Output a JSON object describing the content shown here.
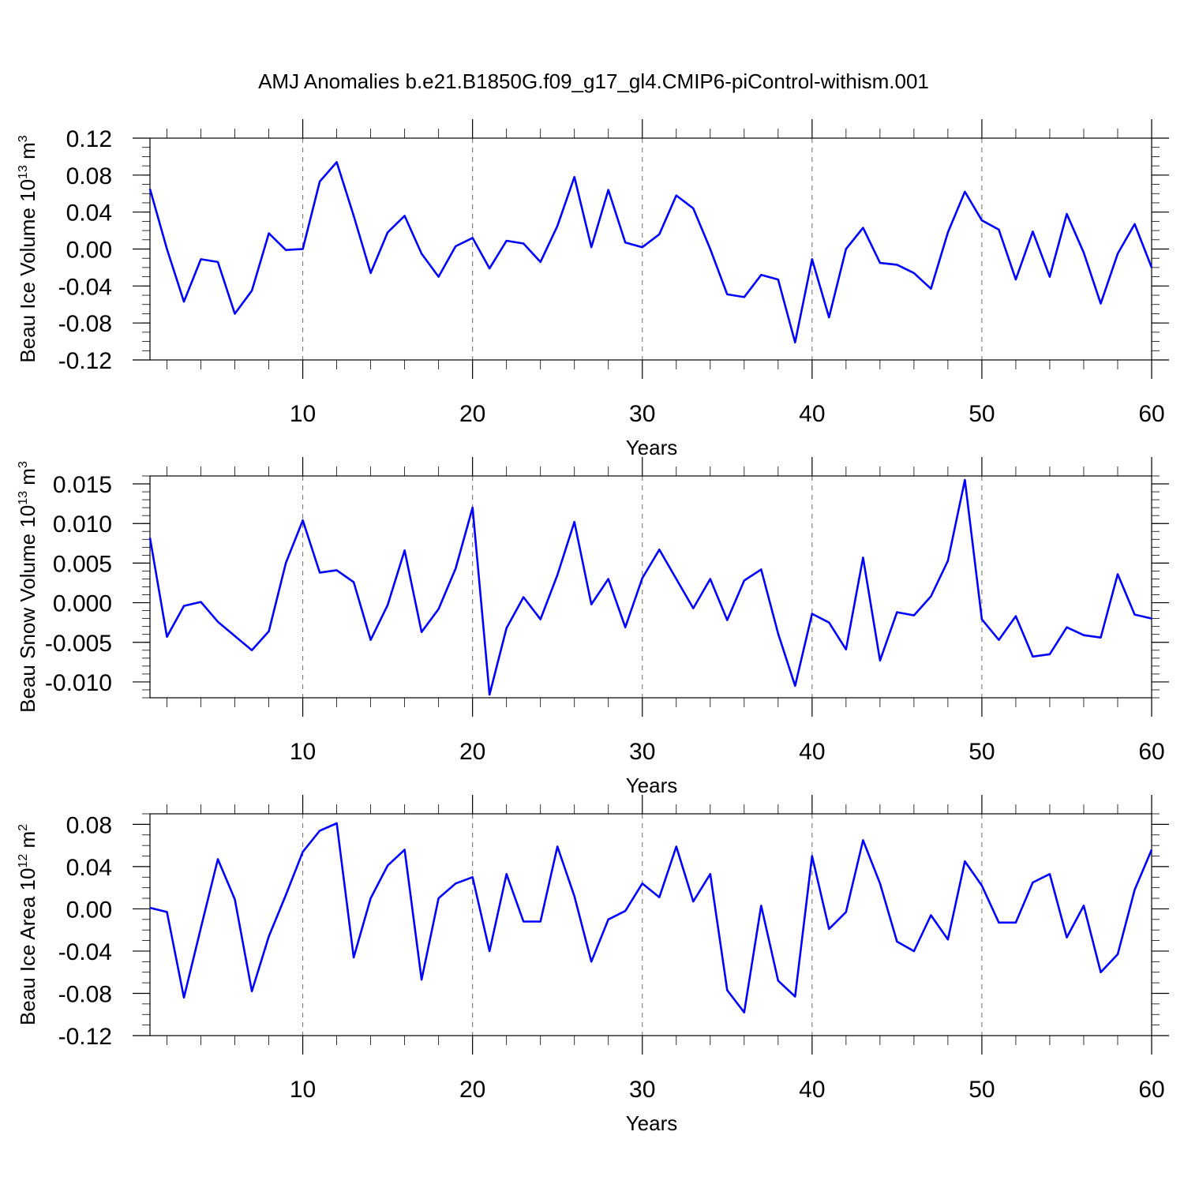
{
  "title": "AMJ Anomalies b.e21.B1850G.f09_g17_gl4.CMIP6-piControl-withism.001",
  "colors": {
    "line": "#0000ff"
  },
  "chart_data": [
    {
      "type": "line",
      "ylabel_main": "Beau Ice Volume 10",
      "ylabel_exp": "13",
      "ylabel_unit": " m",
      "ylabel_unit_exp": "3",
      "xlabel": "Years",
      "xlim": [
        1,
        60
      ],
      "ylim": [
        -0.12,
        0.12
      ],
      "yticks": [
        -0.12,
        -0.08,
        -0.04,
        0.0,
        0.04,
        0.08,
        0.12
      ],
      "ytick_labels": [
        "-0.12",
        "-0.08",
        "-0.04",
        "0.00",
        "0.04",
        "0.08",
        "0.12"
      ],
      "yminor_step": 0.01,
      "xticks": [
        10,
        20,
        30,
        40,
        50,
        60
      ],
      "xtick_labels": [
        "10",
        "20",
        "30",
        "40",
        "50",
        "60"
      ],
      "x": [
        1,
        2,
        3,
        4,
        5,
        6,
        7,
        8,
        9,
        10,
        11,
        12,
        13,
        14,
        15,
        16,
        17,
        18,
        19,
        20,
        21,
        22,
        23,
        24,
        25,
        26,
        27,
        28,
        29,
        30,
        31,
        32,
        33,
        34,
        35,
        36,
        37,
        38,
        39,
        40,
        41,
        42,
        43,
        44,
        45,
        46,
        47,
        48,
        49,
        50,
        51,
        52,
        53,
        54,
        55,
        56,
        57,
        58,
        59,
        60
      ],
      "values": [
        0.065,
        0.0,
        -0.057,
        -0.011,
        -0.014,
        -0.07,
        -0.045,
        0.017,
        -0.001,
        0.0,
        0.073,
        0.094,
        0.036,
        -0.026,
        0.018,
        0.036,
        -0.005,
        -0.03,
        0.003,
        0.012,
        -0.021,
        0.009,
        0.006,
        -0.014,
        0.025,
        0.078,
        0.002,
        0.064,
        0.007,
        0.002,
        0.016,
        0.058,
        0.044,
        0.0,
        -0.049,
        -0.052,
        -0.028,
        -0.033,
        -0.101,
        -0.011,
        -0.074,
        0.0,
        0.023,
        -0.015,
        -0.017,
        -0.026,
        -0.043,
        0.018,
        0.062,
        0.031,
        0.021,
        -0.033,
        0.019,
        -0.03,
        0.038,
        -0.004,
        -0.059,
        -0.005,
        0.027,
        -0.02
      ]
    },
    {
      "type": "line",
      "ylabel_main": "Beau Snow Volume 10",
      "ylabel_exp": "13",
      "ylabel_unit": " m",
      "ylabel_unit_exp": "3",
      "xlabel": "Years",
      "xlim": [
        1,
        60
      ],
      "ylim": [
        -0.012,
        0.016
      ],
      "yticks": [
        -0.01,
        -0.005,
        0.0,
        0.005,
        0.01,
        0.015
      ],
      "ytick_labels": [
        "-0.010",
        "-0.005",
        "0.000",
        "0.005",
        "0.010",
        "0.015"
      ],
      "yminor_step": 0.001,
      "xticks": [
        10,
        20,
        30,
        40,
        50,
        60
      ],
      "xtick_labels": [
        "10",
        "20",
        "30",
        "40",
        "50",
        "60"
      ],
      "x": [
        1,
        2,
        3,
        4,
        5,
        6,
        7,
        8,
        9,
        10,
        11,
        12,
        13,
        14,
        15,
        16,
        17,
        18,
        19,
        20,
        21,
        22,
        23,
        24,
        25,
        26,
        27,
        28,
        29,
        30,
        31,
        32,
        33,
        34,
        35,
        36,
        37,
        38,
        39,
        40,
        41,
        42,
        43,
        44,
        45,
        46,
        47,
        48,
        49,
        50,
        51,
        52,
        53,
        54,
        55,
        56,
        57,
        58,
        59,
        60
      ],
      "values": [
        0.0082,
        -0.0043,
        -0.0004,
        0.0001,
        -0.0024,
        -0.0042,
        -0.006,
        -0.0036,
        0.005,
        0.0104,
        0.0038,
        0.0041,
        0.0026,
        -0.0047,
        -0.0003,
        0.0066,
        -0.0037,
        -0.0008,
        0.0043,
        0.012,
        -0.0116,
        -0.0032,
        0.0007,
        -0.0021,
        0.0035,
        0.0102,
        -0.0002,
        0.003,
        -0.0031,
        0.0031,
        0.0067,
        0.003,
        -0.0007,
        0.003,
        -0.0022,
        0.0028,
        0.0042,
        -0.0039,
        -0.0105,
        -0.0014,
        -0.0025,
        -0.0059,
        0.0057,
        -0.0073,
        -0.0012,
        -0.0016,
        0.0008,
        0.0053,
        0.0155,
        -0.0021,
        -0.0047,
        -0.0017,
        -0.0068,
        -0.0065,
        -0.0031,
        -0.0041,
        -0.0044,
        0.0036,
        -0.0015,
        -0.002
      ]
    },
    {
      "type": "line",
      "ylabel_main": "Beau Ice Area 10",
      "ylabel_exp": "12",
      "ylabel_unit": " m",
      "ylabel_unit_exp": "2",
      "xlabel": "Years",
      "xlim": [
        1,
        60
      ],
      "ylim": [
        -0.12,
        0.09
      ],
      "yticks": [
        -0.12,
        -0.08,
        -0.04,
        0.0,
        0.04,
        0.08
      ],
      "ytick_labels": [
        "-0.12",
        "-0.08",
        "-0.04",
        "0.00",
        "0.04",
        "0.08"
      ],
      "yminor_step": 0.01,
      "xticks": [
        10,
        20,
        30,
        40,
        50,
        60
      ],
      "xtick_labels": [
        "10",
        "20",
        "30",
        "40",
        "50",
        "60"
      ],
      "x": [
        1,
        2,
        3,
        4,
        5,
        6,
        7,
        8,
        9,
        10,
        11,
        12,
        13,
        14,
        15,
        16,
        17,
        18,
        19,
        20,
        21,
        22,
        23,
        24,
        25,
        26,
        27,
        28,
        29,
        30,
        31,
        32,
        33,
        34,
        35,
        36,
        37,
        38,
        39,
        40,
        41,
        42,
        43,
        44,
        45,
        46,
        47,
        48,
        49,
        50,
        51,
        52,
        53,
        54,
        55,
        56,
        57,
        58,
        59,
        60
      ],
      "values": [
        0.001,
        -0.003,
        -0.084,
        -0.018,
        0.047,
        0.009,
        -0.078,
        -0.026,
        0.013,
        0.054,
        0.074,
        0.081,
        -0.046,
        0.01,
        0.041,
        0.056,
        -0.067,
        0.01,
        0.024,
        0.03,
        -0.04,
        0.033,
        -0.012,
        -0.012,
        0.059,
        0.012,
        -0.05,
        -0.01,
        -0.002,
        0.024,
        0.011,
        0.059,
        0.007,
        0.033,
        -0.077,
        -0.098,
        0.003,
        -0.068,
        -0.083,
        0.05,
        -0.019,
        -0.003,
        0.065,
        0.024,
        -0.031,
        -0.04,
        -0.006,
        -0.029,
        0.045,
        0.022,
        -0.013,
        -0.013,
        0.025,
        0.033,
        -0.027,
        0.003,
        -0.06,
        -0.043,
        0.018,
        0.056
      ]
    }
  ]
}
